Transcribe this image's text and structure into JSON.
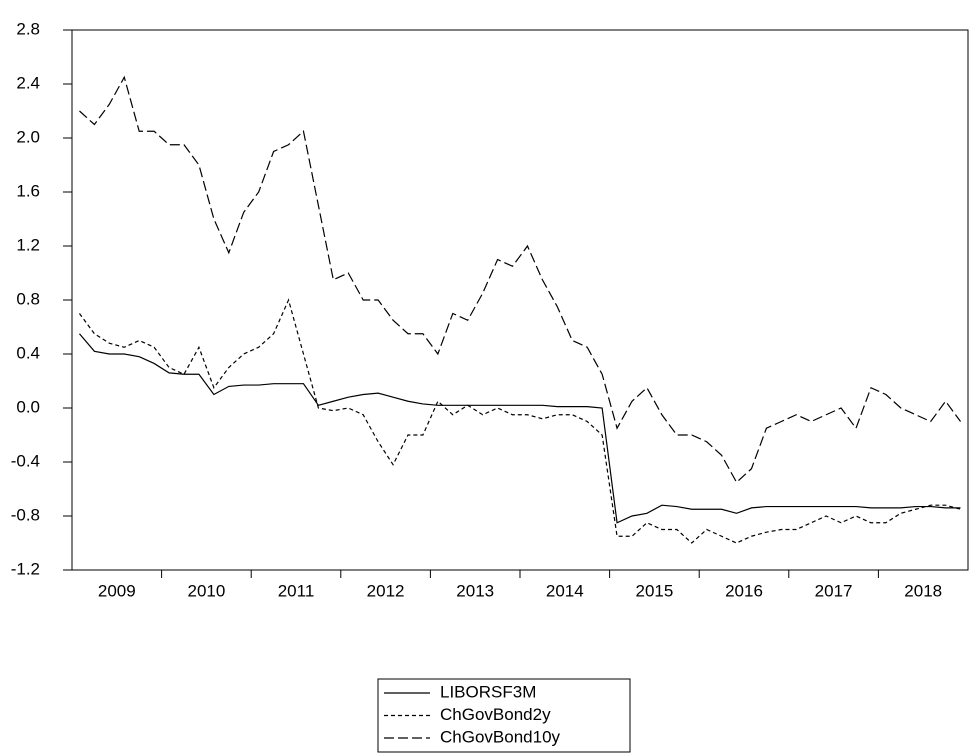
{
  "chart_data": {
    "type": "line",
    "categories": [
      null,
      null,
      null,
      "2009",
      null,
      null,
      null,
      null,
      null,
      "2010",
      null,
      null,
      null,
      null,
      null,
      "2011",
      null,
      null,
      null,
      null,
      null,
      "2012",
      null,
      null,
      null,
      null,
      null,
      "2013",
      null,
      null,
      null,
      null,
      null,
      "2014",
      null,
      null,
      null,
      null,
      null,
      "2015",
      null,
      null,
      null,
      null,
      null,
      "2016",
      null,
      null,
      null,
      null,
      null,
      "2017",
      null,
      null,
      null,
      null,
      null,
      "2018",
      null,
      null
    ],
    "series": [
      {
        "name": "LIBORSF3M",
        "color": "#000000",
        "dash": "none",
        "values": [
          0.55,
          0.42,
          0.4,
          0.4,
          0.38,
          0.33,
          0.26,
          0.25,
          0.25,
          0.1,
          0.16,
          0.17,
          0.17,
          0.18,
          0.18,
          0.18,
          0.02,
          0.05,
          0.08,
          0.1,
          0.11,
          0.08,
          0.05,
          0.03,
          0.02,
          0.02,
          0.02,
          0.02,
          0.02,
          0.02,
          0.02,
          0.02,
          0.01,
          0.01,
          0.01,
          0.0,
          -0.85,
          -0.8,
          -0.78,
          -0.72,
          -0.73,
          -0.75,
          -0.75,
          -0.75,
          -0.78,
          -0.74,
          -0.73,
          -0.73,
          -0.73,
          -0.73,
          -0.73,
          -0.73,
          -0.73,
          -0.74,
          -0.74,
          -0.74,
          -0.73,
          -0.73,
          -0.74,
          -0.74
        ]
      },
      {
        "name": "ChGovBond2y",
        "color": "#000000",
        "dash": "4,3",
        "values": [
          0.7,
          0.55,
          0.48,
          0.45,
          0.5,
          0.45,
          0.3,
          0.25,
          0.45,
          0.15,
          0.3,
          0.4,
          0.45,
          0.55,
          0.8,
          0.4,
          0.0,
          -0.02,
          0.0,
          -0.05,
          -0.25,
          -0.42,
          -0.2,
          -0.2,
          0.05,
          -0.05,
          0.02,
          -0.05,
          0.0,
          -0.05,
          -0.05,
          -0.08,
          -0.05,
          -0.05,
          -0.1,
          -0.2,
          -0.95,
          -0.95,
          -0.85,
          -0.9,
          -0.9,
          -1.0,
          -0.9,
          -0.95,
          -1.0,
          -0.95,
          -0.92,
          -0.9,
          -0.9,
          -0.85,
          -0.8,
          -0.85,
          -0.8,
          -0.85,
          -0.85,
          -0.78,
          -0.75,
          -0.72,
          -0.72,
          -0.75
        ]
      },
      {
        "name": "ChGovBond10y",
        "color": "#000000",
        "dash": "10,4",
        "values": [
          2.2,
          2.1,
          2.25,
          2.45,
          2.05,
          2.05,
          1.95,
          1.95,
          1.8,
          1.4,
          1.15,
          1.45,
          1.6,
          1.9,
          1.95,
          2.05,
          1.5,
          0.95,
          1.0,
          0.8,
          0.8,
          0.65,
          0.55,
          0.55,
          0.4,
          0.7,
          0.65,
          0.85,
          1.1,
          1.05,
          1.2,
          0.95,
          0.75,
          0.5,
          0.45,
          0.25,
          -0.15,
          0.05,
          0.15,
          -0.05,
          -0.2,
          -0.2,
          -0.25,
          -0.35,
          -0.55,
          -0.45,
          -0.15,
          -0.1,
          -0.05,
          -0.1,
          -0.05,
          0.0,
          -0.15,
          0.15,
          0.1,
          0.0,
          -0.05,
          -0.1,
          0.05,
          -0.1
        ]
      }
    ],
    "ylim": [
      -1.2,
      2.8
    ],
    "yticks": [
      -1.2,
      -0.8,
      -0.4,
      {
        "value": 0,
        "label": "0.0"
      },
      0.4,
      0.8,
      1.2,
      1.6,
      {
        "value": 2,
        "label": "2.0"
      },
      2.4,
      2.8
    ],
    "grid": false
  }
}
